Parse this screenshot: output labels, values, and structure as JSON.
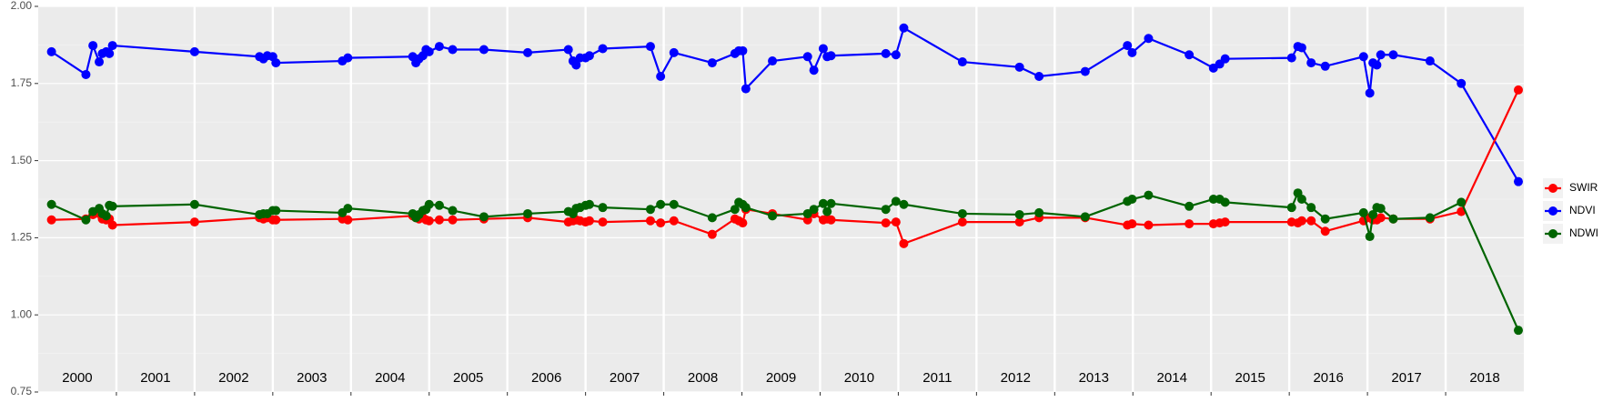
{
  "chart_data": {
    "type": "line",
    "x": [
      2000.17,
      2000.61,
      2000.7,
      2000.78,
      2000.82,
      2000.87,
      2000.91,
      2000.95,
      2002.0,
      2002.83,
      2002.88,
      2002.93,
      2003.0,
      2003.04,
      2003.89,
      2003.96,
      2004.79,
      2004.83,
      2004.87,
      2004.92,
      2004.96,
      2005.0,
      2005.13,
      2005.3,
      2005.7,
      2006.26,
      2006.78,
      2006.84,
      2006.88,
      2006.93,
      2007.0,
      2007.05,
      2007.22,
      2007.83,
      2007.96,
      2008.13,
      2008.62,
      2008.91,
      2008.96,
      2009.01,
      2009.05,
      2009.39,
      2009.84,
      2009.92,
      2010.04,
      2010.09,
      2010.14,
      2010.84,
      2010.97,
      2011.07,
      2011.82,
      2012.55,
      2012.8,
      2013.39,
      2013.93,
      2013.99,
      2014.2,
      2014.72,
      2015.03,
      2015.11,
      2015.18,
      2016.03,
      2016.11,
      2016.16,
      2016.28,
      2016.46,
      2016.95,
      2017.03,
      2017.07,
      2017.12,
      2017.17,
      2017.33,
      2017.8,
      2018.2,
      2018.93
    ],
    "series": [
      {
        "name": "SWIR",
        "color": "#ff0000",
        "values": [
          1.308,
          1.311,
          1.325,
          1.328,
          1.311,
          1.308,
          1.311,
          1.291,
          1.301,
          1.315,
          1.311,
          1.315,
          1.308,
          1.308,
          1.311,
          1.308,
          1.321,
          1.315,
          1.311,
          1.315,
          1.308,
          1.305,
          1.308,
          1.308,
          1.311,
          1.315,
          1.301,
          1.305,
          1.308,
          1.305,
          1.301,
          1.305,
          1.301,
          1.305,
          1.298,
          1.305,
          1.261,
          1.311,
          1.305,
          1.298,
          1.342,
          1.328,
          1.308,
          1.328,
          1.308,
          1.311,
          1.308,
          1.298,
          1.301,
          1.231,
          1.301,
          1.301,
          1.315,
          1.315,
          1.291,
          1.295,
          1.291,
          1.295,
          1.295,
          1.298,
          1.301,
          1.301,
          1.298,
          1.305,
          1.305,
          1.271,
          1.305,
          1.315,
          1.308,
          1.308,
          1.315,
          1.311,
          1.311,
          1.335,
          1.729
        ]
      },
      {
        "name": "NDVI",
        "color": "#0000ff",
        "values": [
          1.853,
          1.779,
          1.873,
          1.82,
          1.847,
          1.853,
          1.847,
          1.873,
          1.853,
          1.837,
          1.83,
          1.84,
          1.837,
          1.817,
          1.823,
          1.833,
          1.837,
          1.817,
          1.83,
          1.84,
          1.86,
          1.853,
          1.87,
          1.86,
          1.86,
          1.85,
          1.86,
          1.823,
          1.81,
          1.833,
          1.833,
          1.84,
          1.863,
          1.87,
          1.773,
          1.85,
          1.817,
          1.847,
          1.856,
          1.856,
          1.733,
          1.823,
          1.837,
          1.793,
          1.863,
          1.837,
          1.84,
          1.847,
          1.843,
          1.93,
          1.82,
          1.803,
          1.773,
          1.789,
          1.873,
          1.85,
          1.896,
          1.843,
          1.8,
          1.813,
          1.83,
          1.833,
          1.87,
          1.866,
          1.817,
          1.806,
          1.837,
          1.719,
          1.817,
          1.81,
          1.843,
          1.843,
          1.823,
          1.75,
          1.432
        ]
      },
      {
        "name": "NDWI",
        "color": "#006400",
        "values": [
          1.358,
          1.308,
          1.335,
          1.345,
          1.328,
          1.321,
          1.355,
          1.352,
          1.358,
          1.325,
          1.328,
          1.328,
          1.338,
          1.338,
          1.331,
          1.345,
          1.328,
          1.315,
          1.325,
          1.338,
          1.342,
          1.358,
          1.355,
          1.338,
          1.318,
          1.328,
          1.335,
          1.328,
          1.345,
          1.348,
          1.355,
          1.358,
          1.348,
          1.342,
          1.358,
          1.358,
          1.315,
          1.342,
          1.365,
          1.358,
          1.348,
          1.321,
          1.328,
          1.342,
          1.361,
          1.335,
          1.361,
          1.342,
          1.368,
          1.358,
          1.328,
          1.325,
          1.331,
          1.318,
          1.368,
          1.375,
          1.388,
          1.352,
          1.375,
          1.375,
          1.365,
          1.348,
          1.395,
          1.375,
          1.348,
          1.311,
          1.331,
          1.254,
          1.325,
          1.348,
          1.345,
          1.311,
          1.315,
          1.365,
          0.95
        ]
      }
    ],
    "xlim": [
      2000,
      2019
    ],
    "xticks": [
      2001,
      2002,
      2003,
      2004,
      2005,
      2006,
      2007,
      2008,
      2009,
      2010,
      2011,
      2012,
      2013,
      2014,
      2015,
      2016,
      2017,
      2018
    ],
    "year_labels": [
      {
        "value": 2000.5,
        "label": "2000"
      },
      {
        "value": 2001.5,
        "label": "2001"
      },
      {
        "value": 2002.5,
        "label": "2002"
      },
      {
        "value": 2003.5,
        "label": "2003"
      },
      {
        "value": 2004.5,
        "label": "2004"
      },
      {
        "value": 2005.5,
        "label": "2005"
      },
      {
        "value": 2006.5,
        "label": "2006"
      },
      {
        "value": 2007.5,
        "label": "2007"
      },
      {
        "value": 2008.5,
        "label": "2008"
      },
      {
        "value": 2009.5,
        "label": "2009"
      },
      {
        "value": 2010.5,
        "label": "2010"
      },
      {
        "value": 2011.5,
        "label": "2011"
      },
      {
        "value": 2012.5,
        "label": "2012"
      },
      {
        "value": 2013.5,
        "label": "2013"
      },
      {
        "value": 2014.5,
        "label": "2014"
      },
      {
        "value": 2015.5,
        "label": "2015"
      },
      {
        "value": 2016.5,
        "label": "2016"
      },
      {
        "value": 2017.5,
        "label": "2017"
      },
      {
        "value": 2018.5,
        "label": "2018"
      }
    ],
    "ylim": [
      0.75,
      2.0
    ],
    "yticks": [
      0.75,
      {
        "value": 1.0,
        "label": "1.00"
      },
      1.25,
      {
        "value": 1.5,
        "label": "1.50"
      },
      1.75,
      {
        "value": 2.0,
        "label": "2.00"
      }
    ],
    "grid": true
  }
}
